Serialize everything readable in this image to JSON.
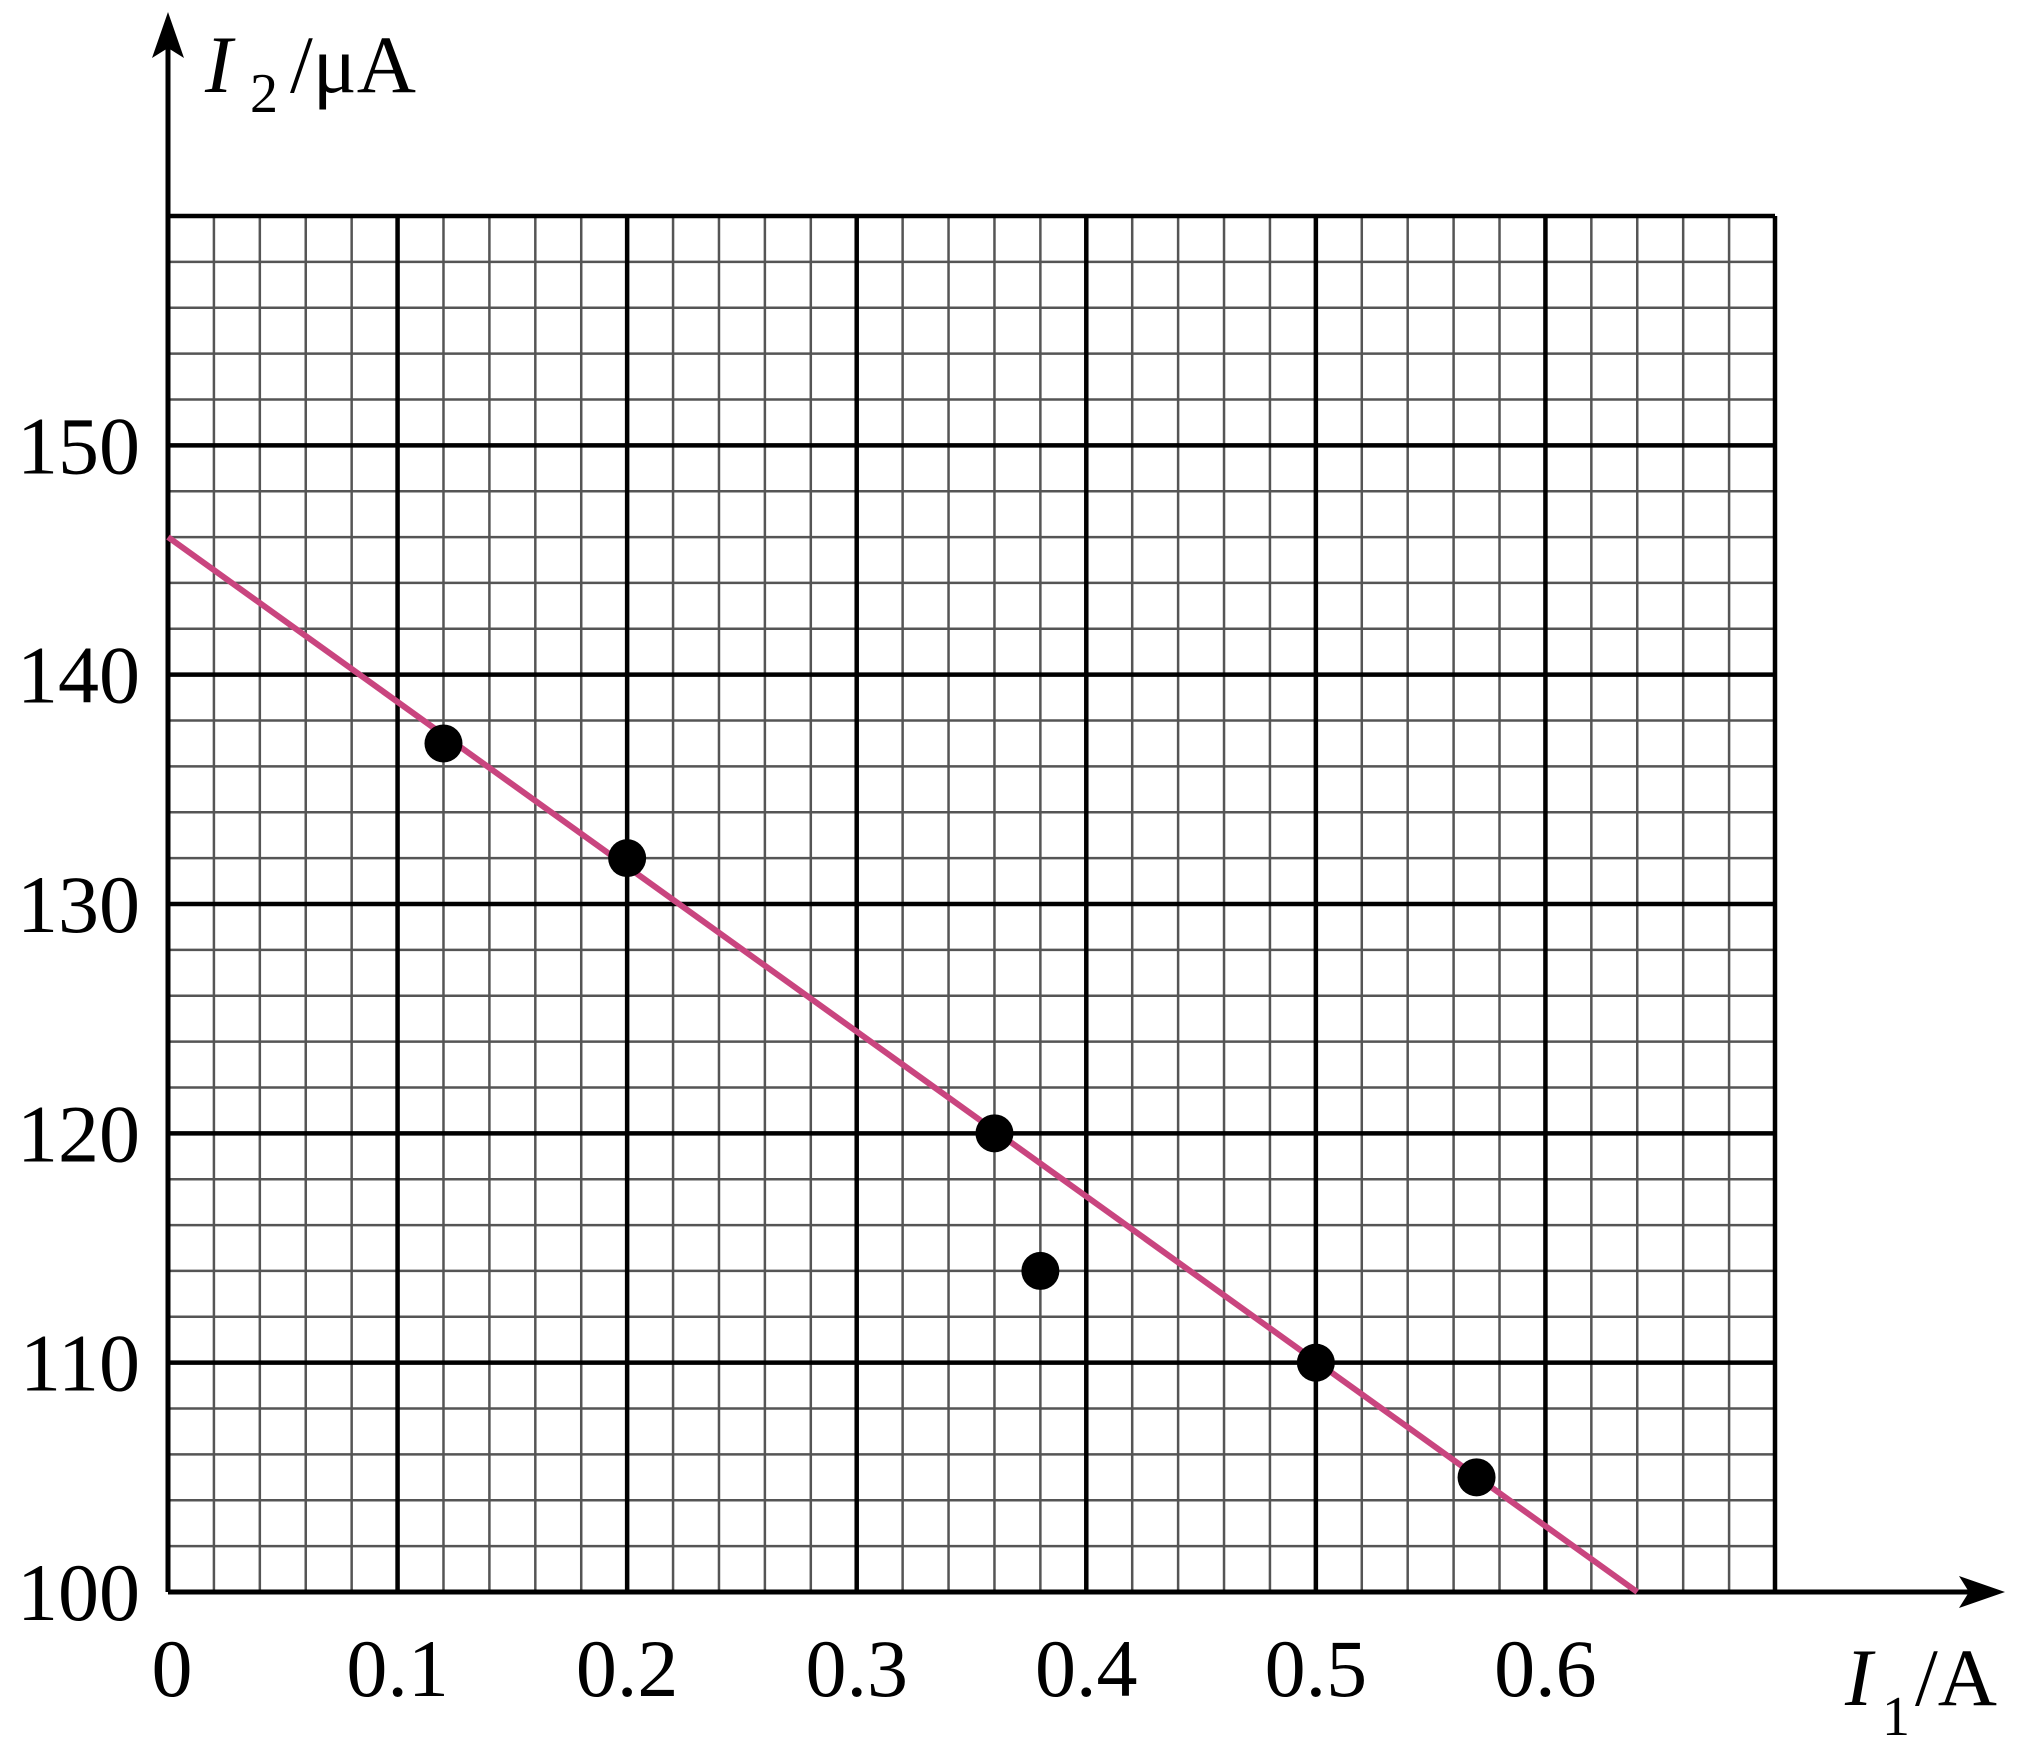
{
  "chart_data": {
    "type": "scatter",
    "xlabel": {
      "symbol": "I",
      "subscript": "1",
      "unit": "/A"
    },
    "ylabel": {
      "symbol": "I",
      "subscript": "2",
      "unit": "/μA"
    },
    "xlim": [
      0,
      0.7
    ],
    "ylim": [
      100,
      160
    ],
    "xticks": [
      0,
      0.1,
      0.2,
      0.3,
      0.4,
      0.5,
      0.6
    ],
    "yticks": [
      100,
      110,
      120,
      130,
      140,
      150
    ],
    "xminor": 0.02,
    "yminor": 2,
    "grid": true,
    "series": [
      {
        "type": "scatter",
        "color": "#000000",
        "x": [
          0.12,
          0.2,
          0.36,
          0.38,
          0.5,
          0.57
        ],
        "values": [
          137,
          132,
          120,
          114,
          110,
          105
        ]
      },
      {
        "type": "line",
        "color": "#c9457f",
        "x": [
          0,
          0.64
        ],
        "values": [
          146,
          100
        ]
      }
    ]
  }
}
